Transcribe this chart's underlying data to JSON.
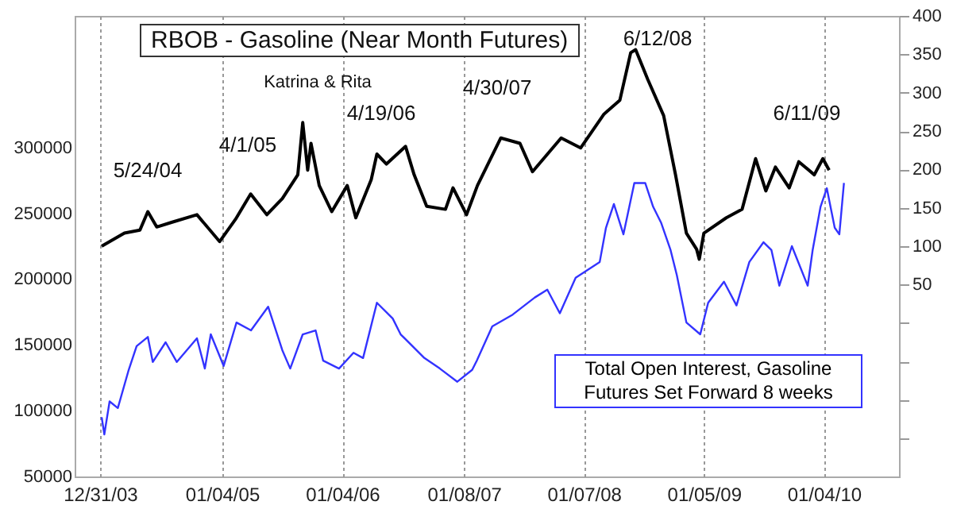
{
  "chart_data": {
    "type": "line",
    "title": "RBOB - Gasoline (Near Month Futures)",
    "xlim": [
      "2003-10-15",
      "2010-08-20"
    ],
    "xticks": [
      {
        "value": "2003-12-31",
        "label": "12/31/03"
      },
      {
        "value": "2005-01-04",
        "label": "01/04/05"
      },
      {
        "value": "2006-01-04",
        "label": "01/04/06"
      },
      {
        "value": "2007-01-08",
        "label": "01/08/07"
      },
      {
        "value": "2008-01-07",
        "label": "01/07/08"
      },
      {
        "value": "2009-01-05",
        "label": "01/05/09"
      },
      {
        "value": "2010-01-04",
        "label": "01/04/10"
      }
    ],
    "ylim": [
      50000,
      400000
    ],
    "yticks": [
      50000,
      100000,
      150000,
      200000,
      250000,
      300000
    ],
    "y2lim": [
      -200,
      400
    ],
    "y2ticks": [
      {
        "value": -150,
        "label": null
      },
      {
        "value": -100,
        "label": null
      },
      {
        "value": -50,
        "label": null
      },
      {
        "value": 0,
        "label": null
      },
      50,
      100,
      150,
      200,
      250,
      300,
      350,
      400
    ],
    "grid": "x",
    "series": [
      {
        "name": "Total Open Interest, Gasoline Futures Set Forward 8 weeks",
        "color": "#3333ff",
        "x": [
          "2004-01-05",
          "2004-01-13",
          "2004-01-29",
          "2004-02-23",
          "2004-03-27",
          "2004-04-20",
          "2004-05-24",
          "2004-06-08",
          "2004-07-17",
          "2004-08-20",
          "2004-10-20",
          "2004-11-13",
          "2004-12-01",
          "2005-01-09",
          "2005-02-17",
          "2005-04-02",
          "2005-05-24",
          "2005-07-06",
          "2005-07-30",
          "2005-09-06",
          "2005-10-15",
          "2005-11-07",
          "2005-12-25",
          "2006-02-07",
          "2006-03-08",
          "2006-04-19",
          "2006-06-06",
          "2006-06-30",
          "2006-09-10",
          "2006-10-27",
          "2006-12-19",
          "2007-02-02",
          "2007-02-16",
          "2007-04-04",
          "2007-06-05",
          "2007-08-11",
          "2007-09-18",
          "2007-10-26",
          "2007-12-13",
          "2008-02-24",
          "2008-03-14",
          "2008-04-07",
          "2008-05-06",
          "2008-06-08",
          "2008-07-11",
          "2008-08-04",
          "2008-08-28",
          "2008-09-26",
          "2008-10-15",
          "2008-11-13",
          "2008-12-25",
          "2009-01-18",
          "2009-03-07",
          "2009-04-14",
          "2009-05-23",
          "2009-07-05",
          "2009-07-29",
          "2009-08-22",
          "2009-09-29",
          "2009-11-16",
          "2009-12-01",
          "2009-12-25",
          "2010-01-13",
          "2010-02-06",
          "2010-02-20",
          "2010-03-06"
        ],
        "values": [
          95000,
          82000,
          107000,
          102000,
          131000,
          149000,
          156000,
          137000,
          152000,
          137000,
          155000,
          132000,
          158000,
          134000,
          167000,
          161000,
          179000,
          146000,
          132000,
          158000,
          161000,
          138000,
          132000,
          144000,
          140000,
          182000,
          170000,
          158000,
          140000,
          132000,
          122000,
          131000,
          138000,
          164000,
          173000,
          186000,
          192000,
          174000,
          201000,
          213000,
          239000,
          257000,
          234000,
          273000,
          273000,
          255000,
          243000,
          222000,
          203000,
          167000,
          158000,
          182000,
          198000,
          180000,
          213000,
          228000,
          222000,
          195000,
          225000,
          195000,
          222000,
          255000,
          269000,
          239000,
          234000,
          273000
        ]
      },
      {
        "color": "#000000",
        "axis": "y2",
        "x": [
          "2004-01-05",
          "2004-03-14",
          "2004-04-30",
          "2004-05-24",
          "2004-06-20",
          "2004-08-04",
          "2004-10-20",
          "2004-12-28",
          "2005-02-14",
          "2005-04-01",
          "2005-05-20",
          "2005-07-06",
          "2005-08-22",
          "2005-09-06",
          "2005-09-21",
          "2005-10-01",
          "2005-10-26",
          "2005-12-03",
          "2006-01-19",
          "2006-02-14",
          "2006-04-02",
          "2006-04-19",
          "2006-05-18",
          "2006-07-15",
          "2006-08-10",
          "2006-09-17",
          "2006-11-13",
          "2006-12-06",
          "2007-01-16",
          "2007-02-18",
          "2007-04-30",
          "2007-06-27",
          "2007-08-04",
          "2007-10-30",
          "2007-12-28",
          "2008-03-08",
          "2008-04-25",
          "2008-05-28",
          "2008-06-12",
          "2008-07-19",
          "2008-09-05",
          "2008-10-11",
          "2008-11-13",
          "2008-12-14",
          "2008-12-22",
          "2009-01-05",
          "2009-03-14",
          "2009-05-01",
          "2009-06-11",
          "2009-07-12",
          "2009-08-10",
          "2009-09-21",
          "2009-10-20",
          "2009-12-06",
          "2010-01-01",
          "2010-01-20"
        ],
        "values": [
          100,
          117,
          121,
          145,
          125,
          131,
          141,
          106,
          135,
          168,
          141,
          162,
          193,
          261,
          199,
          234,
          179,
          145,
          179,
          137,
          187,
          220,
          207,
          230,
          193,
          152,
          148,
          176,
          141,
          179,
          241,
          234,
          197,
          241,
          228,
          272,
          290,
          352,
          356,
          317,
          270,
          193,
          117,
          96,
          83,
          117,
          137,
          148,
          214,
          172,
          203,
          176,
          210,
          193,
          214,
          199
        ]
      }
    ],
    "annotations": [
      "5/24/04",
      "4/1/05",
      "Katrina & Rita",
      "4/19/06",
      "4/30/07",
      "6/12/08",
      "6/11/09"
    ]
  }
}
